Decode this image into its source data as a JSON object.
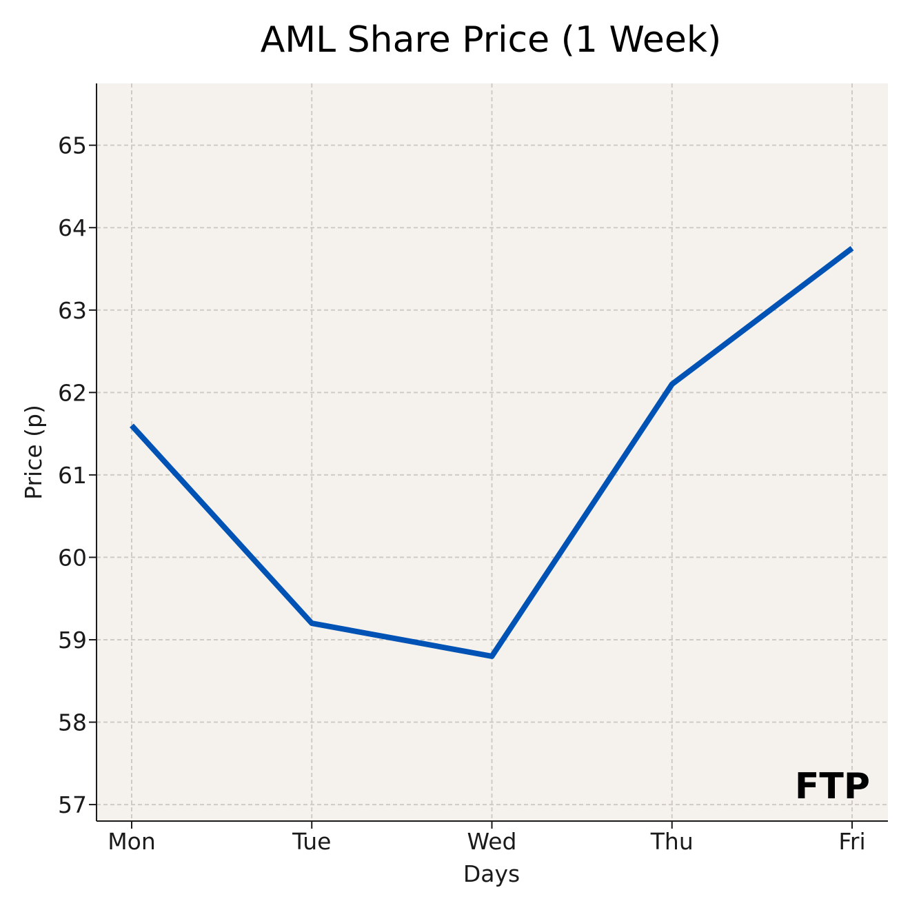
{
  "chart_data": {
    "type": "line",
    "title": "AML Share Price (1 Week)",
    "xlabel": "Days",
    "ylabel": "Price (p)",
    "categories": [
      "Mon",
      "Tue",
      "Wed",
      "Thu",
      "Fri"
    ],
    "series": [
      {
        "values": [
          61.6,
          59.2,
          58.8,
          62.1,
          63.75
        ],
        "color": "#0052b4"
      }
    ],
    "yticks": [
      "57",
      "58",
      "59",
      "60",
      "61",
      "62",
      "63",
      "64",
      "65"
    ],
    "ylim": [
      56.8,
      65.75
    ],
    "grid": true,
    "legend": "none",
    "background_color": "#f5f2ee",
    "watermark": "FTP"
  }
}
